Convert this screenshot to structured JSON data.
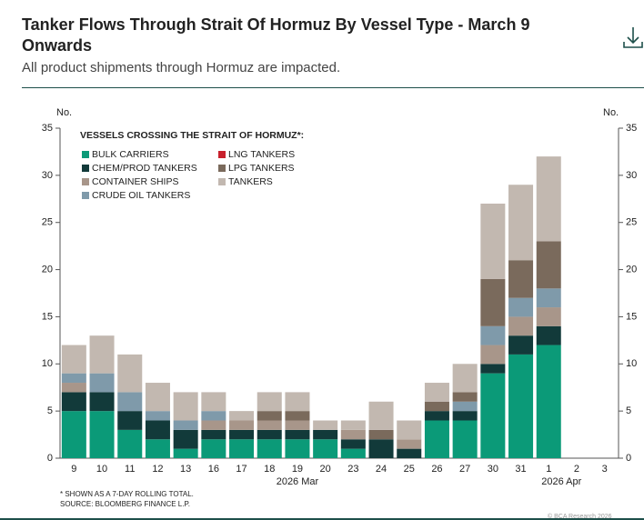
{
  "header": {
    "title": "Tanker Flows Through Strait Of Hormuz By Vessel Type - March 9 Onwards",
    "subtitle": "All product shipments through Hormuz are impacted."
  },
  "chart_data": {
    "type": "stacked-bar",
    "y_label": "No.",
    "legend_title": "VESSELS CROSSING THE STRAIT OF HORMUZ*:",
    "categories": [
      "9",
      "10",
      "11",
      "12",
      "13",
      "16",
      "17",
      "18",
      "19",
      "20",
      "23",
      "24",
      "25",
      "26",
      "27",
      "30",
      "31",
      "1",
      "2",
      "3"
    ],
    "x_groups": [
      {
        "label": "2026 Mar",
        "from": 0,
        "to": 16
      },
      {
        "label": "2026 Apr",
        "from": 17,
        "to": 19
      }
    ],
    "series": [
      {
        "name": "BULK CARRIERS",
        "color": "#0b9a78",
        "values": [
          5,
          5,
          3,
          2,
          1,
          2,
          2,
          2,
          2,
          2,
          1,
          0,
          0,
          4,
          4,
          9,
          11,
          12,
          0,
          0
        ]
      },
      {
        "name": "CHEM/PROD TANKERS",
        "color": "#123a3a",
        "values": [
          2,
          2,
          2,
          2,
          2,
          1,
          1,
          1,
          1,
          1,
          1,
          2,
          1,
          1,
          1,
          1,
          2,
          2,
          0,
          0
        ]
      },
      {
        "name": "CONTAINER SHIPS",
        "color": "#a8968a",
        "values": [
          1,
          0,
          0,
          0,
          0,
          1,
          1,
          1,
          1,
          0,
          1,
          0,
          1,
          0,
          0,
          2,
          2,
          2,
          0,
          0
        ]
      },
      {
        "name": "CRUDE OIL TANKERS",
        "color": "#7f9aaa",
        "values": [
          1,
          2,
          2,
          1,
          1,
          1,
          0,
          0,
          0,
          0,
          0,
          0,
          0,
          0,
          1,
          2,
          2,
          2,
          0,
          0
        ]
      },
      {
        "name": "LNG TANKERS",
        "color": "#c8202c",
        "values": [
          0,
          0,
          0,
          0,
          0,
          0,
          0,
          0,
          0,
          0,
          0,
          0,
          0,
          0,
          0,
          0,
          0,
          0,
          0,
          0
        ]
      },
      {
        "name": "LPG TANKERS",
        "color": "#7a6a5c",
        "values": [
          0,
          0,
          0,
          0,
          0,
          0,
          0,
          1,
          1,
          0,
          0,
          1,
          0,
          1,
          1,
          5,
          4,
          5,
          0,
          0
        ]
      },
      {
        "name": "TANKERS",
        "color": "#c2b8b0",
        "values": [
          3,
          4,
          4,
          3,
          3,
          2,
          1,
          2,
          2,
          1,
          1,
          3,
          2,
          2,
          3,
          8,
          8,
          9,
          0,
          0
        ]
      }
    ],
    "ylim": [
      0,
      35
    ],
    "yticks": [
      0,
      5,
      10,
      15,
      20,
      25,
      30,
      35
    ],
    "footnote": "* SHOWN AS A 7-DAY ROLLING TOTAL.",
    "source": "SOURCE: BLOOMBERG FINANCE L.P.",
    "credit": "© BCA Research 2026"
  }
}
